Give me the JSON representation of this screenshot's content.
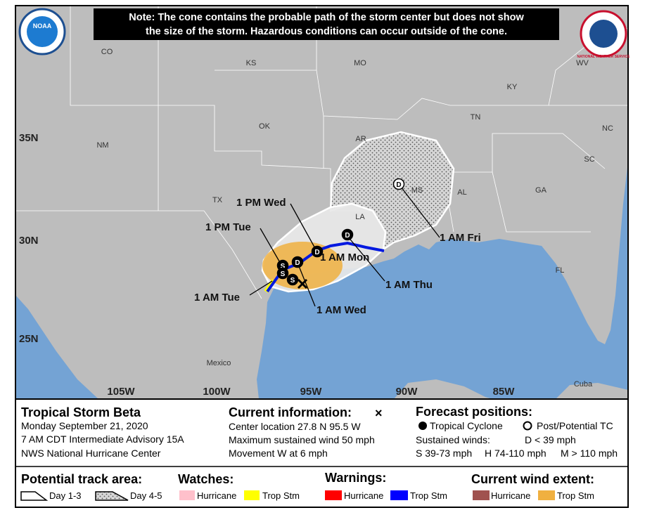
{
  "note": {
    "lines": [
      "Note: The cone contains the probable path of the storm center but does not show",
      "the size of the storm. Hazardous conditions can occur outside of the cone."
    ]
  },
  "logos": {
    "noaa": "NOAA",
    "nws": "NATIONAL WEATHER SERVICE"
  },
  "map": {
    "regions": [
      "CO",
      "KS",
      "MO",
      "KY",
      "WV",
      "TN",
      "NC",
      "OK",
      "AR",
      "SC",
      "NM",
      "MS",
      "AL",
      "GA",
      "TX",
      "LA",
      "FL",
      "Mexico",
      "Cuba"
    ],
    "latitudes": [
      "35N",
      "30N",
      "25N"
    ],
    "longitudes": [
      "105W",
      "100W",
      "95W",
      "90W",
      "85W"
    ],
    "times": [
      "1 PM Wed",
      "1 PM Tue",
      "1 AM Mon",
      "1 AM Thu",
      "1 AM Fri",
      "1 AM Tue",
      "1 AM Wed"
    ],
    "markers": [
      "D",
      "D",
      "D",
      "D",
      "S",
      "S",
      "S"
    ]
  },
  "storm": {
    "name": "Tropical Storm Beta",
    "date": "Monday September 21, 2020",
    "advisory": "7 AM CDT Intermediate Advisory 15A",
    "office": "NWS National Hurricane Center"
  },
  "current": {
    "title": "Current information:",
    "symbol": "×",
    "lines": [
      "Center location 27.8 N 95.5 W",
      "Maximum sustained wind 50 mph",
      "Movement W at 6 mph"
    ]
  },
  "forecast": {
    "title": "Forecast positions:",
    "tropical": "Tropical Cyclone",
    "post": "Post/Potential TC",
    "winds": "Sustained winds:",
    "d": "D < 39 mph",
    "s": "S 39-73 mph",
    "h": "H 74-110 mph",
    "m": "M > 110 mph"
  },
  "legend": {
    "track": {
      "title": "Potential track area:",
      "day13": "Day 1-3",
      "day45": "Day 4-5"
    },
    "watches": {
      "title": "Watches:",
      "hurricane": "Hurricane",
      "tropstm": "Trop Stm"
    },
    "warnings": {
      "title": "Warnings:",
      "hurricane": "Hurricane",
      "tropstm": "Trop Stm"
    },
    "wind": {
      "title": "Current wind extent:",
      "hurricane": "Hurricane",
      "tropstm": "Trop Stm"
    }
  }
}
